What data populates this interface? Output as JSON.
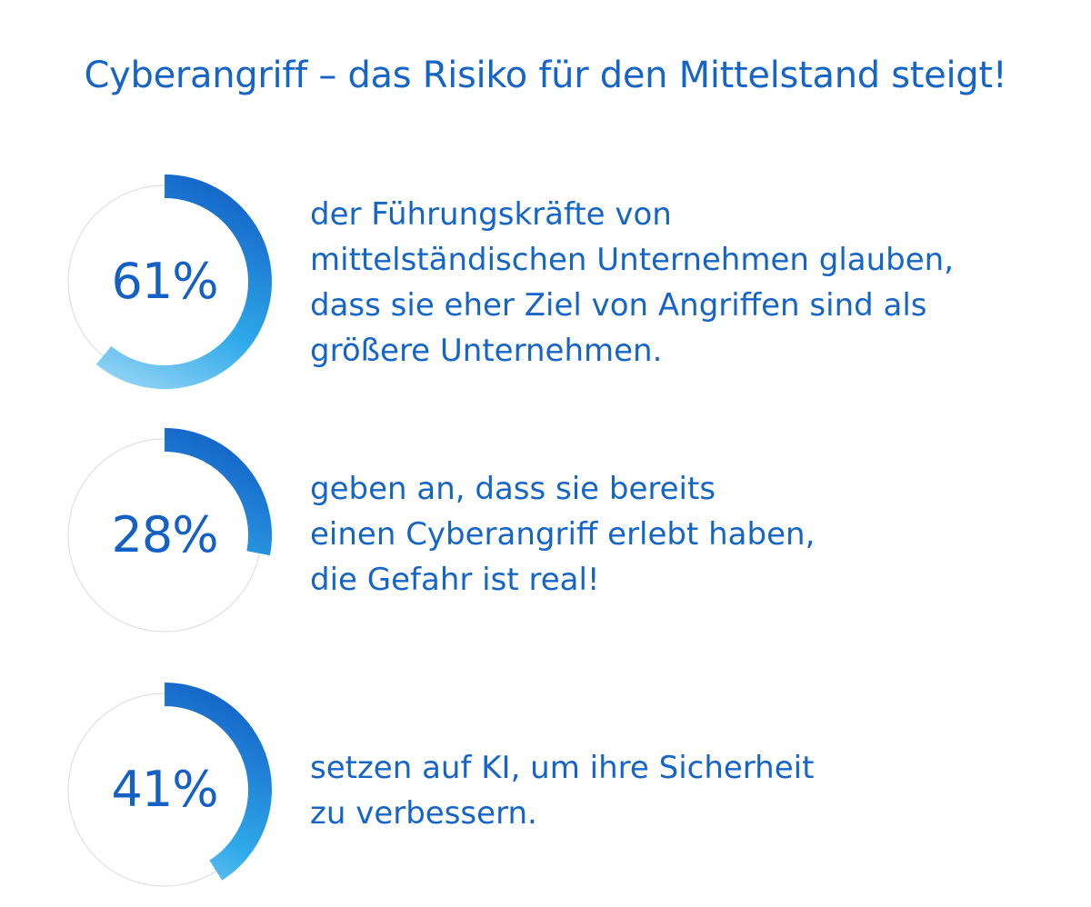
{
  "title": "Cyberangriff – das Risiko für den Mittelstand steigt!",
  "colors": {
    "accent": "#1565c8",
    "track": "#dde1e6",
    "ring_start": "#1565c8",
    "ring_mid": "#2fa9ea",
    "ring_end": "#a5dcf7"
  },
  "chart_data": {
    "type": "donut",
    "title": "Cyberangriff – das Risiko für den Mittelstand steigt!",
    "items": [
      {
        "label": "61%",
        "value": 61,
        "lines": [
          "der Führungskräfte von",
          "mittelständischen Unternehmen glauben,",
          "dass sie eher Ziel von Angriffen sind als",
          "größere Unternehmen."
        ]
      },
      {
        "label": "28%",
        "value": 28,
        "lines": [
          "geben an, dass sie bereits",
          "einen Cyberangriff erlebt haben,",
          "die Gefahr ist real!"
        ]
      },
      {
        "label": "41%",
        "value": 41,
        "lines": [
          "setzen auf KI, um ihre Sicherheit",
          "zu verbessern."
        ]
      }
    ]
  }
}
